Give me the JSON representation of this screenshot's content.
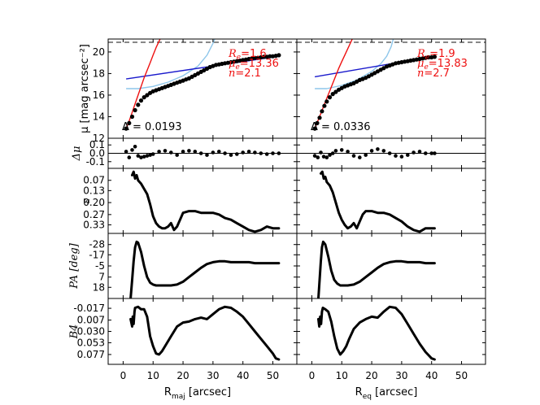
{
  "chart_data": {
    "type": "line",
    "description_panels": [
      "mu",
      "dmu",
      "eps",
      "pa",
      "b4"
    ],
    "x_columns": [
      {
        "id": "maj",
        "xlabel_main": "R",
        "xlabel_sub": "maj",
        "xlabel_unit": " [arcsec]",
        "xlim": [
          -5,
          58
        ],
        "xticks": [
          0,
          10,
          20,
          30,
          40,
          50
        ],
        "xtick_labels": [
          "0",
          "10",
          "20",
          "30",
          "40",
          "50"
        ]
      },
      {
        "id": "eq",
        "xlabel_main": "R",
        "xlabel_sub": "eq",
        "xlabel_unit": " [arcsec]",
        "xlim": [
          -5,
          58
        ],
        "xticks": [
          0,
          10,
          20,
          30,
          40,
          50
        ],
        "xtick_labels": [
          "0",
          "10",
          "20",
          "30",
          "40",
          "50"
        ]
      }
    ],
    "rows": {
      "mu": {
        "ylabel": "μ [mag arcsec⁻²]",
        "ylim": [
          21.2,
          12
        ],
        "yticks": [
          12,
          14,
          16,
          18,
          20
        ],
        "ytick_labels": [
          "12",
          "14",
          "16",
          "18",
          "20"
        ]
      },
      "dmu": {
        "ylabel": "Δμ",
        "ylim": [
          0.18,
          -0.18
        ],
        "yticks": [
          -0.1,
          0.0,
          0.1
        ],
        "ytick_labels": [
          "-0.1",
          "0.0",
          "0.1"
        ]
      },
      "eps": {
        "ylabel": "ε",
        "ylim": [
          0.0,
          0.38
        ],
        "yticks": [
          0.07,
          0.13,
          0.2,
          0.27,
          0.33
        ],
        "ytick_labels": [
          "0.07",
          "0.13",
          "0.20",
          "0.27",
          "0.33"
        ]
      },
      "pa": {
        "ylabel": "PA [deg]",
        "ylim": [
          -40,
          30
        ],
        "yticks": [
          -28,
          -17,
          -5,
          7,
          18
        ],
        "ytick_labels": [
          "-28",
          "-17",
          "-5",
          "7",
          "18"
        ]
      },
      "b4": {
        "ylabel": "B4",
        "ylim": [
          -0.037,
          0.097
        ],
        "yticks": [
          -0.017,
          0.007,
          0.03,
          0.053,
          0.077
        ],
        "ytick_labels": [
          "-0.017",
          "0.007",
          "0.030",
          "0.053",
          "0.077"
        ]
      }
    },
    "panels": [
      {
        "column": "maj",
        "annotation": {
          "Re_label": "R",
          "Re_sub": "e",
          "Re_value": "=1.6",
          "mue_label": "μ",
          "mue_sub": "e",
          "mue_value": "=13.36",
          "n_label": "n",
          "n_value": "=2.1"
        },
        "delta_text": "Δ = 0.0193",
        "sky_level": 20.9,
        "mu_points": {
          "x": [
            1,
            2,
            3,
            4,
            5,
            6,
            7,
            8,
            9,
            10,
            11,
            12,
            13,
            14,
            15,
            16,
            17,
            18,
            19,
            20,
            21,
            22,
            23,
            24,
            25,
            26,
            27,
            28,
            29,
            30,
            31,
            32,
            33,
            34,
            35,
            36,
            37,
            38,
            39,
            40,
            41,
            42,
            43,
            44,
            45,
            46,
            47,
            48,
            49,
            50,
            51,
            52
          ],
          "y": [
            12.9,
            13.4,
            14.0,
            14.6,
            15.1,
            15.5,
            15.8,
            16.0,
            16.2,
            16.35,
            16.45,
            16.55,
            16.65,
            16.75,
            16.85,
            16.95,
            17.05,
            17.15,
            17.25,
            17.35,
            17.45,
            17.55,
            17.7,
            17.85,
            18.0,
            18.15,
            18.3,
            18.45,
            18.6,
            18.7,
            18.8,
            18.85,
            18.9,
            18.95,
            19.0,
            19.05,
            19.1,
            19.15,
            19.2,
            19.25,
            19.3,
            19.35,
            19.4,
            19.45,
            19.45,
            19.5,
            19.55,
            19.55,
            19.6,
            19.6,
            19.65,
            19.7
          ]
        },
        "sersic_bulge": {
          "x": [
            1,
            2,
            3,
            4,
            5,
            6,
            7,
            8,
            9,
            10,
            11,
            12,
            13,
            14,
            15
          ],
          "y": [
            12.9,
            13.6,
            14.4,
            15.2,
            16.0,
            16.8,
            17.6,
            18.3,
            19.0,
            19.7,
            20.4,
            21.0,
            21.6,
            22.2,
            22.8
          ]
        },
        "exp_disk": {
          "x": [
            1,
            52
          ],
          "y": [
            17.5,
            19.6
          ]
        },
        "bar_component": {
          "x": [
            1,
            5,
            10,
            15,
            20,
            25,
            28,
            30,
            31
          ],
          "y": [
            16.6,
            16.6,
            16.8,
            17.2,
            17.8,
            18.7,
            19.7,
            20.8,
            21.5
          ]
        },
        "dmu_points": {
          "x": [
            1,
            2,
            3,
            4,
            5,
            6,
            7,
            8,
            9,
            10,
            12,
            14,
            16,
            18,
            20,
            22,
            24,
            26,
            28,
            30,
            32,
            34,
            36,
            38,
            40,
            42,
            44,
            46,
            48,
            50,
            52
          ],
          "y": [
            0.02,
            -0.05,
            0.04,
            0.08,
            -0.03,
            -0.05,
            -0.04,
            -0.03,
            -0.02,
            -0.01,
            0.02,
            0.03,
            0.01,
            -0.02,
            0.02,
            0.03,
            0.02,
            0.0,
            -0.02,
            0.01,
            0.02,
            0.0,
            -0.02,
            -0.01,
            0.01,
            0.02,
            0.01,
            0.0,
            -0.01,
            0.0,
            0.0
          ]
        },
        "eps": {
          "x": [
            3,
            3.5,
            4,
            4.5,
            5,
            6,
            7,
            8,
            9,
            10,
            11,
            12,
            13,
            14,
            15,
            16,
            17,
            18,
            19,
            20,
            22,
            24,
            26,
            28,
            30,
            32,
            34,
            36,
            38,
            40,
            42,
            44,
            46,
            48,
            50,
            52
          ],
          "y": [
            0.04,
            0.02,
            0.06,
            0.04,
            0.07,
            0.09,
            0.12,
            0.15,
            0.21,
            0.28,
            0.32,
            0.34,
            0.35,
            0.35,
            0.34,
            0.32,
            0.36,
            0.34,
            0.3,
            0.26,
            0.25,
            0.25,
            0.26,
            0.26,
            0.26,
            0.27,
            0.29,
            0.3,
            0.32,
            0.34,
            0.36,
            0.37,
            0.36,
            0.34,
            0.35,
            0.35
          ]
        },
        "pa": {
          "x": [
            2.5,
            3,
            3.5,
            4,
            4.5,
            5,
            6,
            7,
            8,
            9,
            10,
            11,
            12,
            14,
            16,
            18,
            20,
            22,
            24,
            26,
            28,
            30,
            32,
            34,
            36,
            38,
            40,
            42,
            44,
            46,
            48,
            50,
            52
          ],
          "y": [
            30,
            10,
            -10,
            -25,
            -31,
            -30,
            -20,
            -5,
            7,
            13,
            15,
            16,
            16,
            16,
            16,
            15,
            12,
            7,
            2,
            -3,
            -7,
            -9,
            -10,
            -10,
            -9,
            -9,
            -9,
            -9,
            -8,
            -8,
            -8,
            -8,
            -8
          ]
        },
        "b4": {
          "x": [
            2.5,
            3,
            3.2,
            3.5,
            3.8,
            4,
            5,
            6,
            7,
            8,
            9,
            10,
            11,
            12,
            13,
            14,
            16,
            18,
            20,
            22,
            24,
            26,
            28,
            30,
            32,
            34,
            36,
            38,
            40,
            42,
            44,
            46,
            48,
            50,
            51,
            52
          ],
          "y": [
            0.005,
            0.02,
            0.0,
            0.015,
            -0.01,
            -0.018,
            -0.02,
            -0.015,
            -0.015,
            0.0,
            0.04,
            0.06,
            0.075,
            0.077,
            0.07,
            0.06,
            0.04,
            0.02,
            0.012,
            0.01,
            0.005,
            0.002,
            0.005,
            -0.005,
            -0.015,
            -0.02,
            -0.018,
            -0.01,
            0.0,
            0.015,
            0.03,
            0.045,
            0.06,
            0.075,
            0.085,
            0.087
          ]
        }
      },
      {
        "column": "eq",
        "annotation": {
          "Re_label": "R",
          "Re_sub": "e",
          "Re_value": "=1.9",
          "mue_label": "μ",
          "mue_sub": "e",
          "mue_value": "=13.83",
          "n_label": "n",
          "n_value": "=2.7"
        },
        "delta_text": "Δ = 0.0336",
        "sky_level": 20.9,
        "mu_points": {
          "x": [
            1,
            1.8,
            2.6,
            3.4,
            4.2,
            5,
            6,
            7,
            8,
            9,
            10,
            11,
            12,
            13,
            14,
            15,
            16,
            17,
            18,
            19,
            20,
            21,
            22,
            23,
            24,
            25,
            26,
            27,
            28,
            29,
            30,
            31,
            32,
            33,
            34,
            35,
            36,
            37,
            38,
            39,
            40,
            41
          ],
          "y": [
            12.9,
            13.4,
            13.9,
            14.5,
            15.0,
            15.4,
            15.8,
            16.1,
            16.3,
            16.5,
            16.65,
            16.8,
            16.9,
            17.0,
            17.1,
            17.25,
            17.4,
            17.5,
            17.6,
            17.75,
            17.9,
            18.05,
            18.2,
            18.35,
            18.5,
            18.65,
            18.75,
            18.85,
            18.95,
            19.0,
            19.05,
            19.1,
            19.15,
            19.2,
            19.25,
            19.3,
            19.35,
            19.4,
            19.45,
            19.5,
            19.5,
            19.55
          ]
        },
        "sersic_bulge": {
          "x": [
            1,
            2,
            3,
            4,
            5,
            6,
            7,
            8,
            9,
            10,
            11,
            12,
            13,
            14,
            15,
            16
          ],
          "y": [
            12.9,
            13.6,
            14.3,
            15.0,
            15.7,
            16.4,
            17.1,
            17.8,
            18.5,
            19.1,
            19.7,
            20.3,
            20.9,
            21.5,
            22.1,
            22.7
          ]
        },
        "exp_disk": {
          "x": [
            1,
            41
          ],
          "y": [
            17.7,
            19.6
          ]
        },
        "bar_component": {
          "x": [
            1,
            5,
            10,
            15,
            20,
            23,
            25,
            26.5,
            27.5
          ],
          "y": [
            16.6,
            16.6,
            16.9,
            17.4,
            18.2,
            18.9,
            19.6,
            20.5,
            21.5
          ]
        },
        "dmu_points": {
          "x": [
            1,
            2,
            3,
            4,
            5,
            6,
            7,
            8,
            10,
            12,
            14,
            16,
            18,
            20,
            22,
            24,
            26,
            28,
            30,
            32,
            34,
            36,
            38,
            40,
            41
          ],
          "y": [
            -0.03,
            -0.05,
            0.01,
            -0.04,
            -0.05,
            -0.02,
            0.0,
            0.03,
            0.04,
            0.02,
            -0.03,
            -0.05,
            -0.02,
            0.03,
            0.05,
            0.03,
            0.0,
            -0.03,
            -0.04,
            -0.02,
            0.01,
            0.02,
            0.0,
            0.0,
            0.0
          ]
        },
        "eps": {
          "x": [
            3,
            3.5,
            4,
            4.5,
            5,
            6,
            7,
            8,
            9,
            10,
            11,
            12,
            13,
            14,
            15,
            16,
            17,
            18,
            20,
            22,
            24,
            26,
            28,
            30,
            32,
            34,
            36,
            38,
            40,
            41
          ],
          "y": [
            0.03,
            0.02,
            0.06,
            0.05,
            0.08,
            0.1,
            0.14,
            0.2,
            0.26,
            0.3,
            0.33,
            0.35,
            0.34,
            0.32,
            0.35,
            0.31,
            0.27,
            0.25,
            0.25,
            0.26,
            0.26,
            0.27,
            0.29,
            0.31,
            0.34,
            0.36,
            0.37,
            0.35,
            0.35,
            0.35
          ]
        },
        "pa": {
          "x": [
            2.2,
            2.6,
            3,
            3.4,
            3.8,
            4.5,
            5.5,
            6.5,
            7.5,
            8.5,
            9.5,
            10.5,
            12,
            14,
            16,
            18,
            20,
            22,
            24,
            26,
            28,
            30,
            32,
            34,
            36,
            38,
            40,
            41
          ],
          "y": [
            30,
            10,
            -10,
            -25,
            -31,
            -28,
            -15,
            0,
            10,
            14,
            16,
            16,
            16,
            15,
            12,
            7,
            2,
            -3,
            -7,
            -9,
            -10,
            -10,
            -9,
            -9,
            -9,
            -8,
            -8,
            -8
          ]
        },
        "b4": {
          "x": [
            2.2,
            2.5,
            2.8,
            3.1,
            3.4,
            3.7,
            4.5,
            5.5,
            6.5,
            7.5,
            8.5,
            9.5,
            10.5,
            11.5,
            12.5,
            14,
            16,
            18,
            20,
            22,
            24,
            26,
            28,
            30,
            32,
            34,
            36,
            38,
            40,
            41
          ],
          "y": [
            0.005,
            0.02,
            0.0,
            0.015,
            -0.01,
            -0.018,
            -0.015,
            -0.01,
            0.01,
            0.04,
            0.065,
            0.077,
            0.07,
            0.06,
            0.045,
            0.025,
            0.012,
            0.005,
            0.0,
            0.002,
            -0.01,
            -0.02,
            -0.018,
            -0.005,
            0.015,
            0.035,
            0.055,
            0.072,
            0.085,
            0.087
          ]
        }
      }
    ]
  },
  "colors": {
    "points": "#000000",
    "bulge": "#ee1111",
    "disk": "#1a1acc",
    "bar": "#8ec6ea",
    "sky": "#888888",
    "axis": "#000000"
  }
}
